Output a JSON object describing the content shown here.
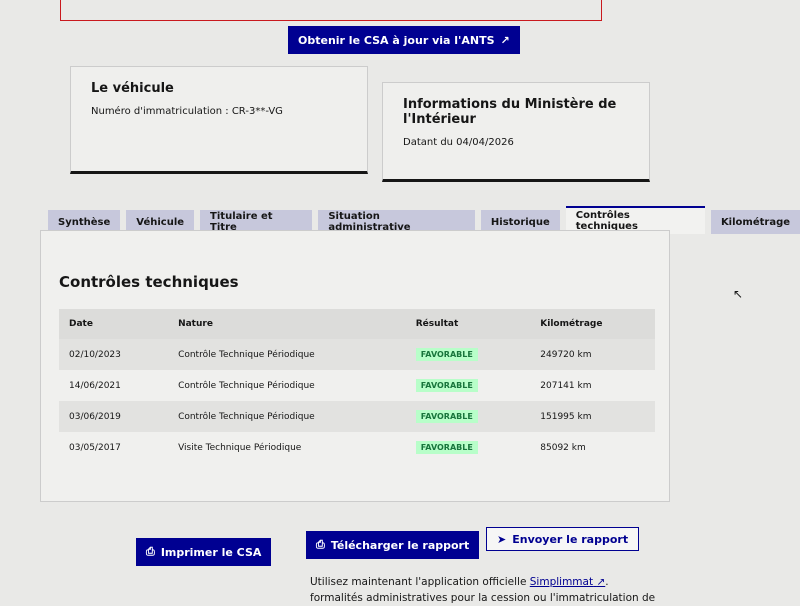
{
  "top_button": {
    "label": "Obtenir le CSA à jour via l'ANTS",
    "icon": "external-link-icon"
  },
  "vehicle_card": {
    "title": "Le véhicule",
    "plate_label": "Numéro d'immatriculation : CR-3**-VG"
  },
  "ministry_card": {
    "title": "Informations du Ministère de l'Intérieur",
    "date": "Datant du 04/04/2026"
  },
  "tabs": [
    {
      "label": "Synthèse"
    },
    {
      "label": "Véhicule"
    },
    {
      "label": "Titulaire et Titre"
    },
    {
      "label": "Situation administrative"
    },
    {
      "label": "Historique"
    },
    {
      "label": "Contrôles techniques",
      "active": true
    },
    {
      "label": "Kilométrage"
    }
  ],
  "section": {
    "title": "Contrôles techniques",
    "columns": [
      "Date",
      "Nature",
      "Résultat",
      "Kilométrage"
    ],
    "rows": [
      {
        "date": "02/10/2023",
        "nature": "Contrôle Technique Périodique",
        "result": "FAVORABLE",
        "km": "249720 km"
      },
      {
        "date": "14/06/2021",
        "nature": "Contrôle Technique Périodique",
        "result": "FAVORABLE",
        "km": "207141 km"
      },
      {
        "date": "03/06/2019",
        "nature": "Contrôle Technique Périodique",
        "result": "FAVORABLE",
        "km": "151995 km"
      },
      {
        "date": "03/05/2017",
        "nature": "Visite Technique Périodique",
        "result": "FAVORABLE",
        "km": "85092 km"
      }
    ]
  },
  "actions": {
    "print": "Imprimer le CSA",
    "download": "Télécharger le rapport",
    "send": "Envoyer le rapport"
  },
  "footer": {
    "text1": "Utilisez maintenant l'application officielle ",
    "link": "Simplimmat",
    "text2": ".",
    "text3": "formalités administratives pour la cession ou l'immatriculation de"
  },
  "colors": {
    "primary": "#000091",
    "badge_bg": "#b8fec9",
    "badge_text": "#18753c"
  }
}
